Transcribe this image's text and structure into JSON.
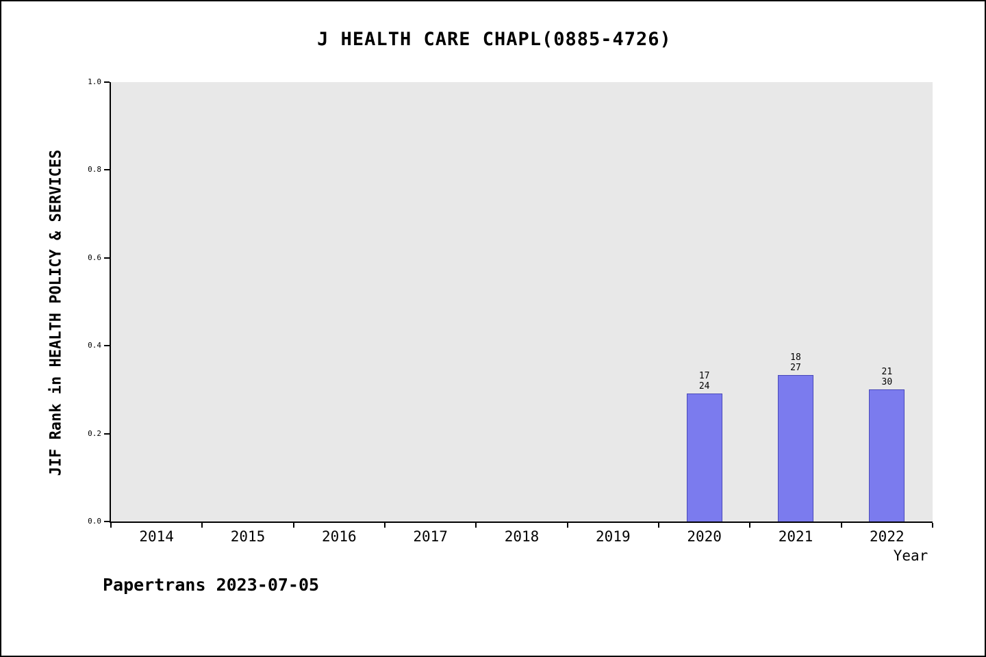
{
  "chart_data": {
    "type": "bar",
    "title": "J HEALTH CARE CHAPL(0885-4726)",
    "xlabel": "Year",
    "ylabel": "JIF Rank in HEALTH POLICY & SERVICES",
    "categories": [
      "2014",
      "2015",
      "2016",
      "2017",
      "2018",
      "2019",
      "2020",
      "2021",
      "2022"
    ],
    "values": [
      null,
      null,
      null,
      null,
      null,
      null,
      0.2917,
      0.3333,
      0.3
    ],
    "bar_labels": [
      null,
      null,
      null,
      null,
      null,
      null,
      [
        "17",
        "24"
      ],
      [
        "18",
        "27"
      ],
      [
        "21",
        "30"
      ]
    ],
    "ylim": [
      0,
      1
    ],
    "ytick_labels": [
      "0.0",
      "0.2",
      "0.4",
      "0.6",
      "0.8",
      "1.0"
    ],
    "ytick_values": [
      0.0,
      0.2,
      0.4,
      0.6,
      0.8,
      1.0
    ],
    "grid": false,
    "legend": "none",
    "bar_color": "#7b7bee",
    "plot_background": "#e8e8e8",
    "footer": "Papertrans 2023-07-05"
  }
}
